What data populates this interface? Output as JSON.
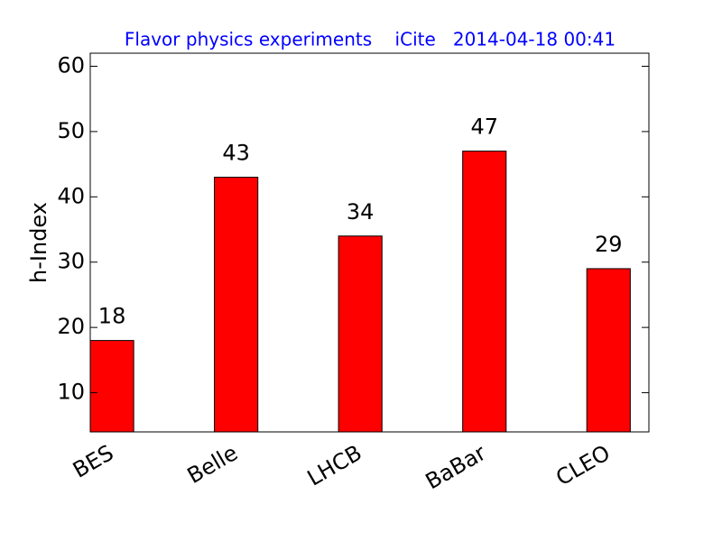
{
  "chart_data": {
    "type": "bar",
    "title": "Flavor physics experiments    iCite   2014-04-18 00:41",
    "y_label": "h-Index",
    "categories": [
      "BES",
      "Belle",
      "LHCB",
      "BaBar",
      "CLEO"
    ],
    "values": [
      18,
      43,
      34,
      47,
      29
    ],
    "color": "#ff0000",
    "ylim": [
      4,
      62
    ],
    "yticks": [
      10,
      20,
      30,
      40,
      50,
      60
    ],
    "grid": false
  }
}
